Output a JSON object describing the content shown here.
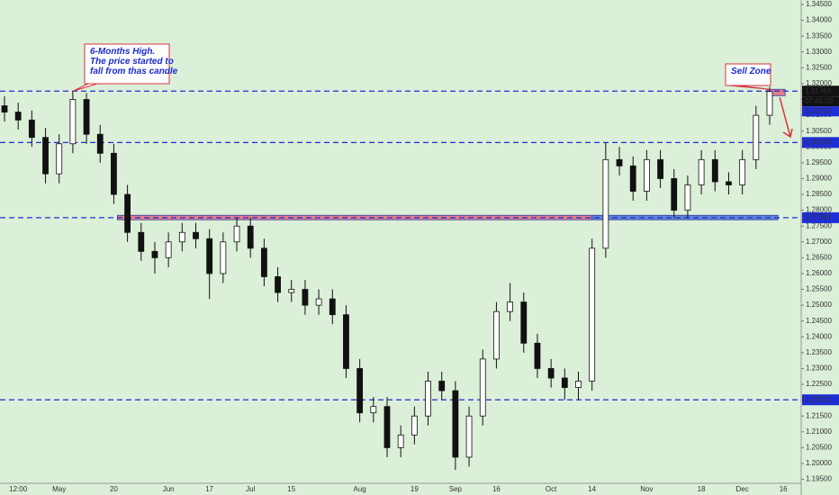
{
  "chart_data": {
    "type": "candlestick",
    "categories": [
      null,
      "12:00",
      null,
      null,
      "May",
      null,
      null,
      null,
      "20",
      null,
      null,
      null,
      "Jun",
      null,
      null,
      "17",
      null,
      null,
      "Jul",
      null,
      null,
      "15",
      null,
      null,
      null,
      null,
      "Aug",
      null,
      null,
      null,
      "19",
      null,
      null,
      "Sep",
      null,
      null,
      "16",
      null,
      null,
      null,
      "Oct",
      null,
      null,
      "14",
      null,
      null,
      null,
      "Nov",
      null,
      null,
      null,
      "18",
      null,
      null,
      "Dec",
      null,
      null,
      "16"
    ],
    "open": [
      1.313,
      1.311,
      1.3085,
      1.303,
      1.2915,
      1.301,
      1.315,
      1.304,
      1.298,
      1.285,
      1.273,
      1.267,
      1.265,
      1.27,
      1.273,
      1.271,
      1.26,
      1.27,
      1.275,
      1.268,
      1.259,
      1.254,
      1.255,
      1.25,
      1.252,
      1.247,
      1.23,
      1.216,
      1.218,
      1.205,
      1.209,
      1.215,
      1.226,
      1.223,
      1.202,
      1.215,
      1.233,
      1.248,
      1.251,
      1.238,
      1.23,
      1.227,
      1.224,
      1.226,
      1.268,
      1.296,
      1.294,
      1.286,
      1.296,
      1.29,
      1.28,
      1.288,
      1.296,
      1.289,
      1.288,
      1.296,
      1.31,
      null
    ],
    "high": [
      1.316,
      1.314,
      1.3115,
      1.306,
      1.304,
      1.3176,
      1.317,
      1.307,
      1.301,
      1.288,
      1.276,
      1.27,
      1.273,
      1.276,
      1.276,
      1.274,
      1.273,
      1.2776,
      1.2776,
      1.271,
      1.262,
      1.258,
      1.258,
      1.255,
      1.255,
      1.25,
      1.233,
      1.221,
      1.221,
      1.212,
      1.218,
      1.229,
      1.229,
      1.226,
      1.218,
      1.236,
      1.251,
      1.257,
      1.254,
      1.241,
      1.233,
      1.23,
      1.229,
      1.271,
      1.3014,
      1.3,
      1.297,
      1.299,
      1.299,
      1.293,
      1.291,
      1.299,
      1.299,
      1.292,
      1.299,
      1.313,
      1.319,
      null
    ],
    "low": [
      1.308,
      1.3055,
      1.3,
      1.2885,
      1.2885,
      1.298,
      1.301,
      1.295,
      1.282,
      1.27,
      1.264,
      1.26,
      1.262,
      1.267,
      1.268,
      1.252,
      1.257,
      1.267,
      1.265,
      1.256,
      1.251,
      1.251,
      1.247,
      1.247,
      1.244,
      1.227,
      1.213,
      1.213,
      1.202,
      1.202,
      1.206,
      1.212,
      1.22,
      1.198,
      1.199,
      1.212,
      1.23,
      1.245,
      1.235,
      1.227,
      1.224,
      1.2201,
      1.2201,
      1.223,
      1.265,
      1.291,
      1.283,
      1.283,
      1.287,
      1.2776,
      1.2776,
      1.285,
      1.286,
      1.285,
      1.285,
      1.293,
      1.307,
      null
    ],
    "close": [
      1.311,
      1.3085,
      1.303,
      1.2915,
      1.301,
      1.315,
      1.304,
      1.298,
      1.285,
      1.273,
      1.267,
      1.265,
      1.27,
      1.273,
      1.271,
      1.26,
      1.27,
      1.275,
      1.268,
      1.259,
      1.254,
      1.255,
      1.25,
      1.252,
      1.247,
      1.23,
      1.216,
      1.218,
      1.205,
      1.209,
      1.215,
      1.226,
      1.223,
      1.202,
      1.215,
      1.233,
      1.248,
      1.251,
      1.238,
      1.23,
      1.227,
      1.224,
      1.226,
      1.268,
      1.296,
      1.294,
      1.286,
      1.296,
      1.29,
      1.28,
      1.288,
      1.296,
      1.289,
      1.288,
      1.296,
      1.31,
      1.3175,
      null
    ],
    "ylim": [
      1.19374,
      1.34642
    ],
    "yticks": [
      {
        "value": 1.345,
        "label": "1.34500"
      },
      {
        "value": 1.34,
        "label": "1.34000"
      },
      {
        "value": 1.335,
        "label": "1.33500"
      },
      {
        "value": 1.33,
        "label": "1.33000"
      },
      {
        "value": 1.325,
        "label": "1.32500"
      },
      {
        "value": 1.32,
        "label": "1.32000"
      },
      {
        "value": 1.315,
        "label": "1.31500"
      },
      {
        "value": 1.31,
        "label": "1.31000"
      },
      {
        "value": 1.305,
        "label": "1.30500"
      },
      {
        "value": 1.3,
        "label": "1.30000"
      },
      {
        "value": 1.295,
        "label": "1.29500"
      },
      {
        "value": 1.29,
        "label": "1.29000"
      },
      {
        "value": 1.285,
        "label": "1.28500"
      },
      {
        "value": 1.28,
        "label": "1.28000"
      },
      {
        "value": 1.275,
        "label": "1.27500"
      },
      {
        "value": 1.27,
        "label": "1.27000"
      },
      {
        "value": 1.265,
        "label": "1.26500"
      },
      {
        "value": 1.26,
        "label": "1.26000"
      },
      {
        "value": 1.255,
        "label": "1.25500"
      },
      {
        "value": 1.25,
        "label": "1.25000"
      },
      {
        "value": 1.245,
        "label": "1.24500"
      },
      {
        "value": 1.24,
        "label": "1.24000"
      },
      {
        "value": 1.235,
        "label": "1.23500"
      },
      {
        "value": 1.23,
        "label": "1.23000"
      },
      {
        "value": 1.225,
        "label": "1.22500"
      },
      {
        "value": 1.22,
        "label": "1.22000"
      },
      {
        "value": 1.215,
        "label": "1.21500"
      },
      {
        "value": 1.21,
        "label": "1.21000"
      },
      {
        "value": 1.205,
        "label": "1.20500"
      },
      {
        "value": 1.2,
        "label": "1.20000"
      },
      {
        "value": 1.195,
        "label": "1.19500"
      }
    ],
    "levels": [
      {
        "value": 1.31763,
        "label": "1.31763"
      },
      {
        "value": 1.3014,
        "label": "1.30140"
      },
      {
        "value": 1.27764,
        "label": "1.27764"
      },
      {
        "value": 1.22012,
        "label": "1.22012"
      }
    ],
    "last_price": {
      "value": 1.31752,
      "label": "1.31752"
    },
    "countdown": "07:49:09",
    "zones": [
      {
        "low": 1.277,
        "high": 1.2784,
        "color": "#e8697d"
      },
      {
        "low": 1.277,
        "high": 1.2784,
        "color": "#4a72d8"
      },
      {
        "low": 1.3162,
        "high": 1.3182,
        "color": "#e8697d"
      }
    ],
    "annotations": [
      "6-Months High.\nThe price started to\nfall from thas candle",
      "Sell Zone"
    ],
    "level_color": "#1f2fd6",
    "up_color": "#ffffff",
    "down_color": "#111111"
  }
}
